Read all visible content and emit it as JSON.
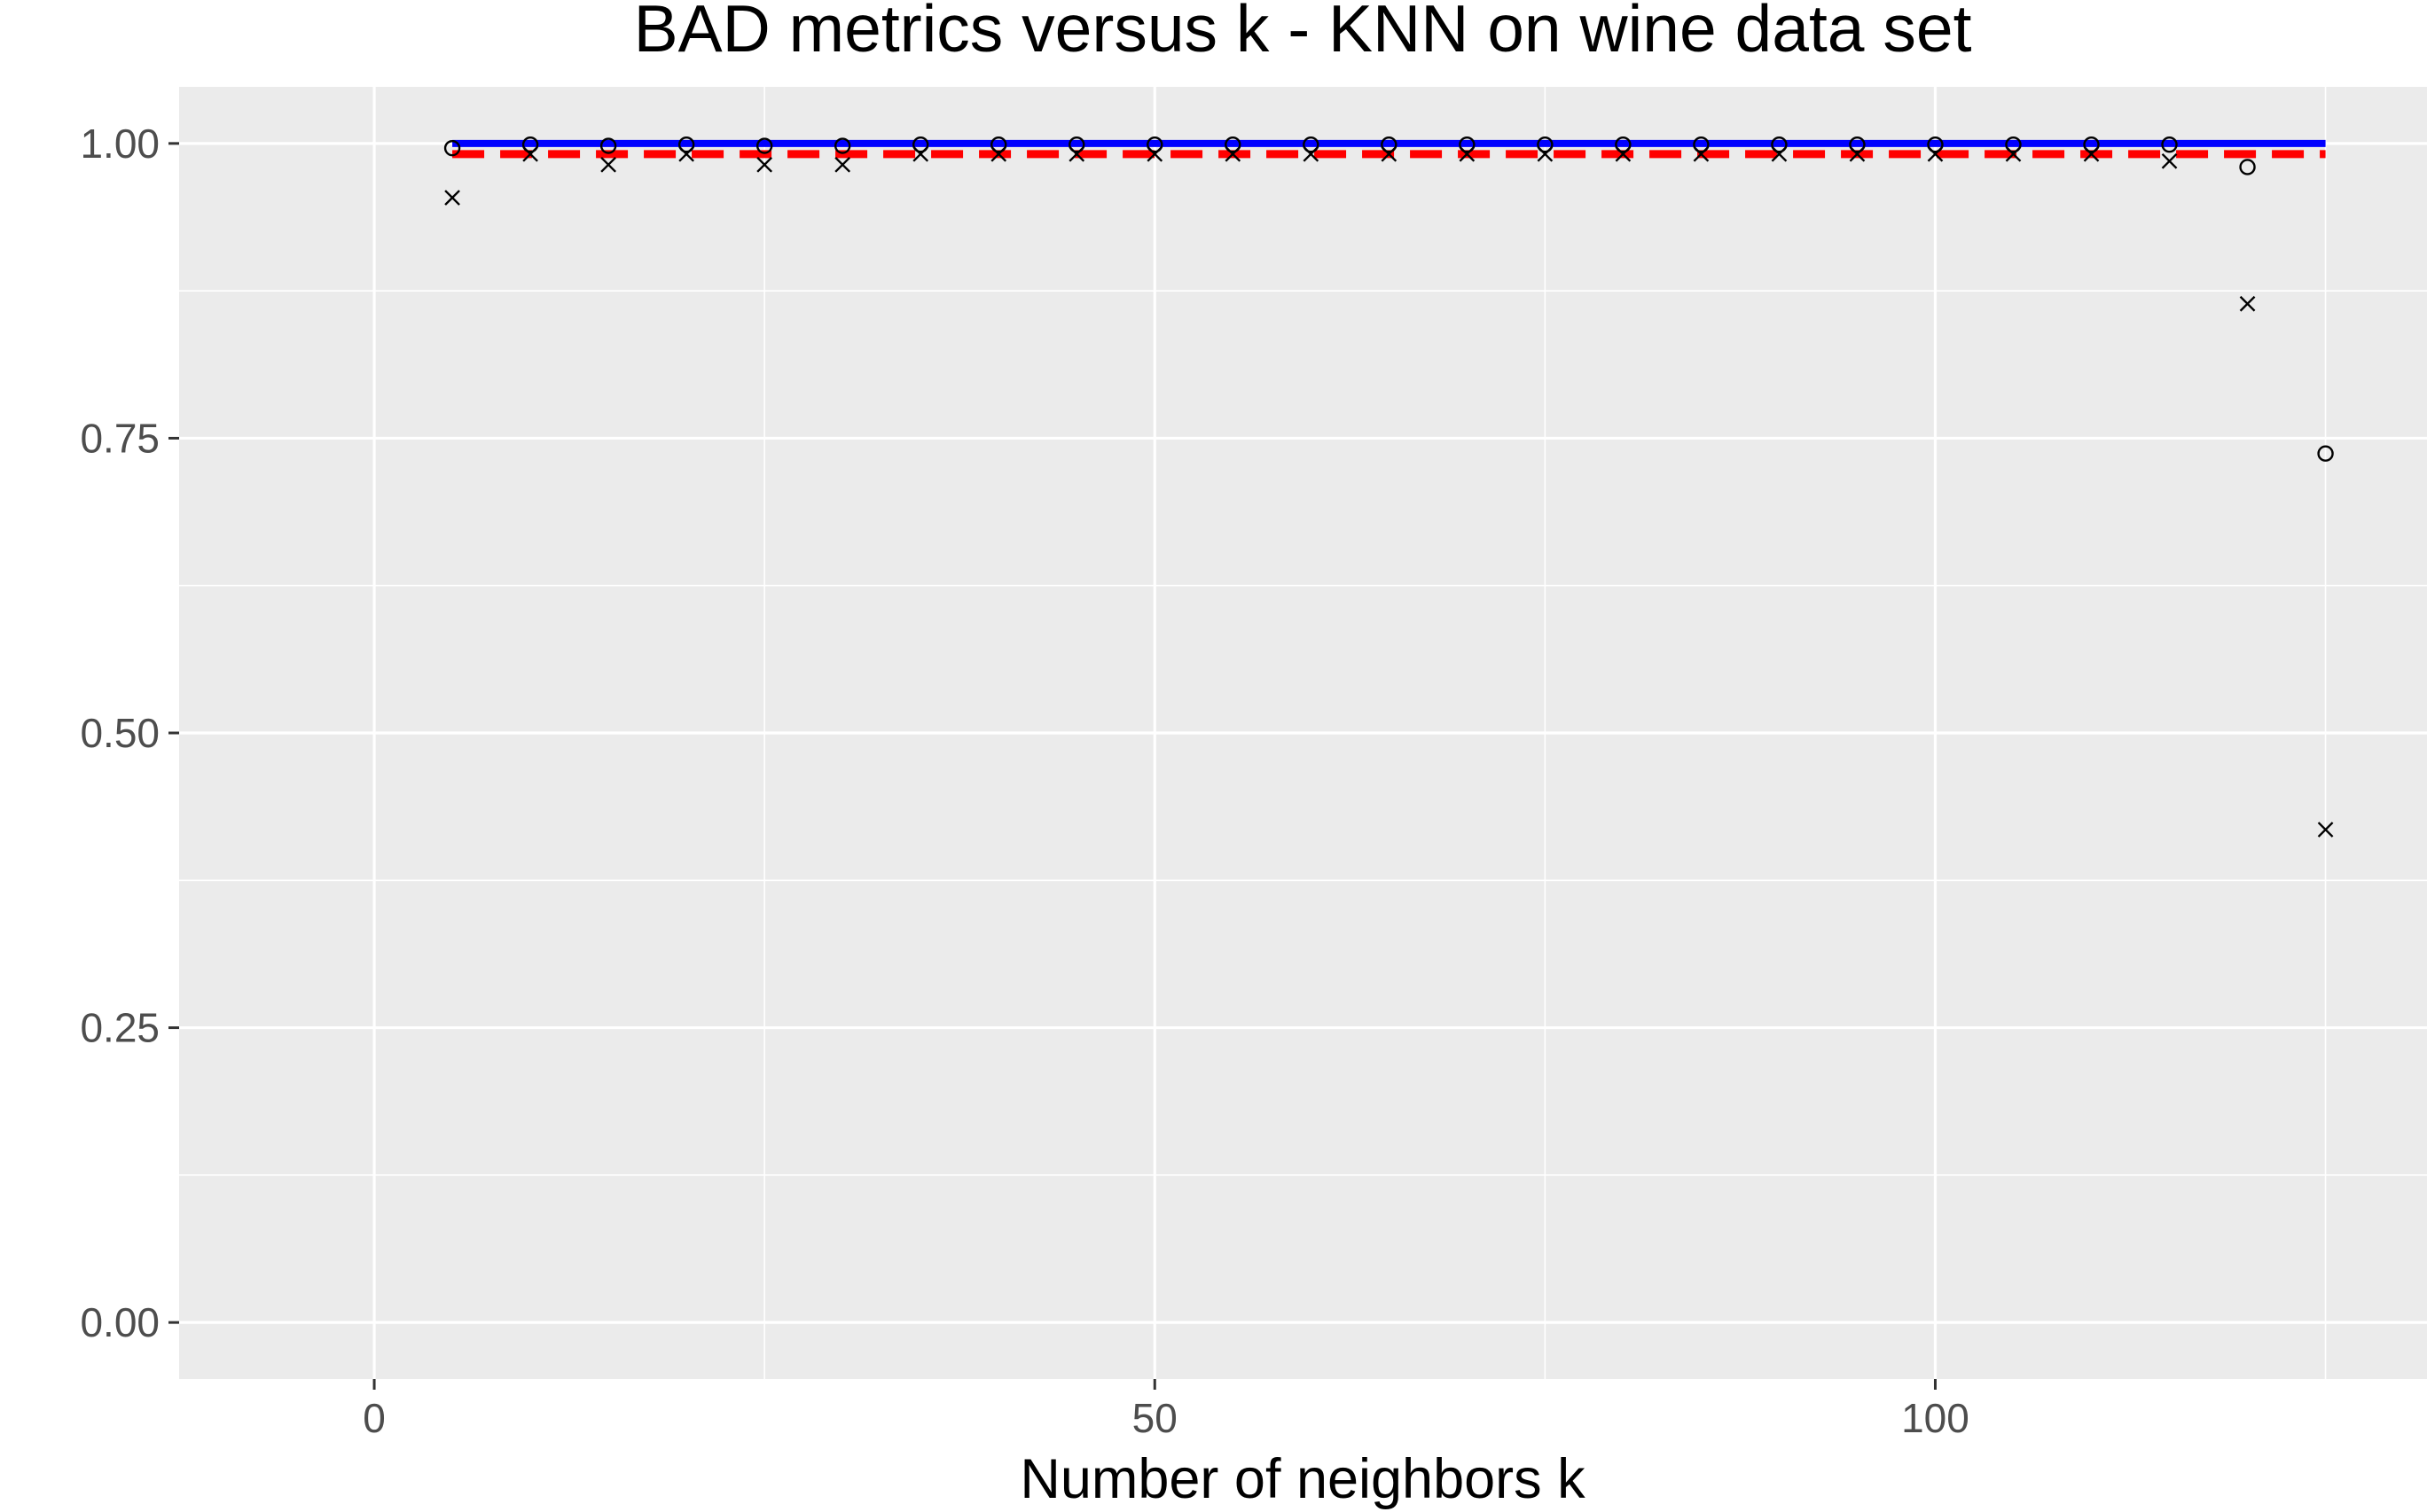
{
  "chart_data": {
    "type": "line",
    "title": "BAD metrics versus k - KNN on wine data set",
    "xlabel": "Number of neighbors k",
    "ylabel": "",
    "xlim": [
      -12.5,
      131.5
    ],
    "ylim": [
      -0.048,
      1.048
    ],
    "x_ticks": [
      0,
      50,
      100
    ],
    "x_tick_labels": [
      "0",
      "50",
      "100"
    ],
    "x_minor_ticks": [
      25,
      75,
      125
    ],
    "y_ticks": [
      0.0,
      0.25,
      0.5,
      0.75,
      1.0
    ],
    "y_tick_labels": [
      "0.00",
      "0.25",
      "0.50",
      "0.75",
      "1.00"
    ],
    "y_minor_ticks": [
      0.125,
      0.375,
      0.625,
      0.875
    ],
    "grid": true,
    "legend": "none",
    "colors": {
      "panel": "#EBEBEB",
      "grid": "#FFFFFF",
      "solid_line": "#0000FF",
      "dashed_line": "#FF0000",
      "points": "#000000",
      "tick_text": "#4D4D4D"
    },
    "lines": [
      {
        "style": "solid",
        "color": "#0000FF",
        "x": [
          5,
          125
        ],
        "y": [
          1.0,
          1.0
        ]
      },
      {
        "style": "dashed",
        "color": "#FF0000",
        "x": [
          5,
          125
        ],
        "y": [
          0.991,
          0.991
        ]
      }
    ],
    "series": [
      {
        "marker": "circle",
        "x": [
          5,
          10,
          15,
          20,
          25,
          30,
          35,
          40,
          45,
          50,
          55,
          60,
          65,
          70,
          75,
          80,
          85,
          90,
          95,
          100,
          105,
          110,
          115,
          120,
          125
        ],
        "y": [
          0.996,
          0.999,
          0.998,
          0.999,
          0.998,
          0.998,
          0.999,
          0.999,
          0.999,
          0.999,
          0.999,
          0.999,
          0.999,
          0.999,
          0.999,
          0.999,
          0.999,
          0.999,
          0.999,
          0.999,
          0.999,
          0.999,
          0.999,
          0.98,
          0.737
        ]
      },
      {
        "marker": "cross",
        "x": [
          5,
          10,
          15,
          20,
          25,
          30,
          35,
          40,
          45,
          50,
          55,
          60,
          65,
          70,
          75,
          80,
          85,
          90,
          95,
          100,
          105,
          110,
          115,
          120,
          125
        ],
        "y": [
          0.954,
          0.991,
          0.982,
          0.991,
          0.982,
          0.982,
          0.991,
          0.991,
          0.991,
          0.991,
          0.991,
          0.991,
          0.991,
          0.991,
          0.991,
          0.991,
          0.991,
          0.991,
          0.991,
          0.991,
          0.991,
          0.991,
          0.985,
          0.864,
          0.418
        ]
      }
    ]
  }
}
